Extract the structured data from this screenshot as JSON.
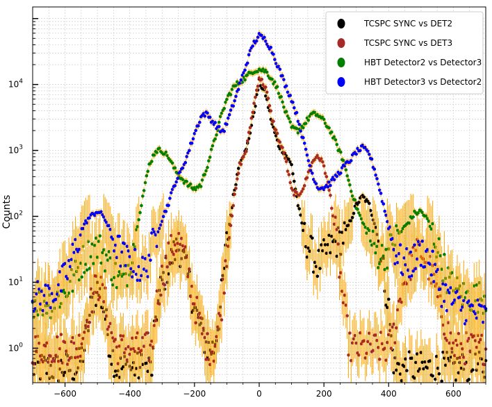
{
  "chart_data": {
    "type": "scatter",
    "ylabel": "Counts",
    "xlabel": "",
    "title": "",
    "y_scale": "log",
    "xlim": [
      -700,
      700
    ],
    "ylim": [
      0.3,
      150000
    ],
    "x_ticks": [
      -600,
      -400,
      -200,
      0,
      200,
      400,
      600
    ],
    "x_tick_labels": [
      "−600",
      "−400",
      "−200",
      "0",
      "200",
      "400",
      "600"
    ],
    "y_ticks": [
      1,
      10,
      100,
      1000,
      10000
    ],
    "y_tick_bases": [
      "10",
      "10",
      "10",
      "10",
      "10"
    ],
    "y_tick_exponents": [
      "0",
      "1",
      "2",
      "3",
      "4"
    ],
    "grid": true,
    "legend_position": "top-right",
    "errorbar_color": "#ffa500",
    "series": [
      {
        "name": "TCSPC SYNC vs DET2",
        "color": "#000000",
        "points": [
          [
            -700,
            0.5
          ],
          [
            -560,
            0.5
          ],
          [
            -540,
            1
          ],
          [
            -520,
            4
          ],
          [
            -510,
            6
          ],
          [
            -500,
            8
          ],
          [
            -490,
            6
          ],
          [
            -480,
            4
          ],
          [
            -460,
            1
          ],
          [
            -440,
            0.5
          ],
          [
            -330,
            0.5
          ],
          [
            -320,
            3
          ],
          [
            -300,
            10
          ],
          [
            -280,
            18
          ],
          [
            -260,
            30
          ],
          [
            -250,
            35
          ],
          [
            -240,
            28
          ],
          [
            -220,
            12
          ],
          [
            -200,
            4
          ],
          [
            -180,
            2
          ],
          [
            -160,
            1
          ],
          [
            -140,
            1
          ],
          [
            -120,
            4
          ],
          [
            -100,
            40
          ],
          [
            -80,
            200
          ],
          [
            -60,
            700
          ],
          [
            -40,
            1000
          ],
          [
            -20,
            3000
          ],
          [
            0,
            11000
          ],
          [
            20,
            7000
          ],
          [
            40,
            2500
          ],
          [
            60,
            1200
          ],
          [
            80,
            900
          ],
          [
            100,
            600
          ],
          [
            120,
            150
          ],
          [
            140,
            50
          ],
          [
            160,
            30
          ],
          [
            180,
            18
          ],
          [
            200,
            25
          ],
          [
            220,
            35
          ],
          [
            240,
            40
          ],
          [
            260,
            50
          ],
          [
            280,
            80
          ],
          [
            300,
            150
          ],
          [
            320,
            200
          ],
          [
            340,
            150
          ],
          [
            360,
            70
          ],
          [
            380,
            20
          ],
          [
            400,
            4
          ],
          [
            410,
            1
          ],
          [
            420,
            0.5
          ],
          [
            700,
            0.5
          ]
        ]
      },
      {
        "name": "TCSPC SYNC vs DET3",
        "color": "#a52a2a",
        "points": [
          [
            -700,
            1
          ],
          [
            -560,
            1
          ],
          [
            -540,
            2
          ],
          [
            -520,
            5
          ],
          [
            -500,
            10
          ],
          [
            -480,
            6
          ],
          [
            -460,
            2
          ],
          [
            -440,
            1
          ],
          [
            -330,
            1
          ],
          [
            -320,
            4
          ],
          [
            -300,
            12
          ],
          [
            -280,
            25
          ],
          [
            -260,
            40
          ],
          [
            -250,
            45
          ],
          [
            -240,
            35
          ],
          [
            -220,
            15
          ],
          [
            -200,
            5
          ],
          [
            -180,
            2
          ],
          [
            -160,
            1
          ],
          [
            -140,
            1
          ],
          [
            -120,
            3
          ],
          [
            -100,
            30
          ],
          [
            -80,
            150
          ],
          [
            -60,
            600
          ],
          [
            -40,
            1000
          ],
          [
            -20,
            4000
          ],
          [
            0,
            13000
          ],
          [
            20,
            9000
          ],
          [
            40,
            3000
          ],
          [
            60,
            1500
          ],
          [
            80,
            800
          ],
          [
            100,
            250
          ],
          [
            120,
            200
          ],
          [
            140,
            300
          ],
          [
            160,
            600
          ],
          [
            180,
            850
          ],
          [
            200,
            600
          ],
          [
            220,
            200
          ],
          [
            240,
            40
          ],
          [
            260,
            5
          ],
          [
            280,
            1
          ],
          [
            400,
            1
          ],
          [
            420,
            2
          ],
          [
            440,
            8
          ],
          [
            460,
            15
          ],
          [
            480,
            25
          ],
          [
            500,
            30
          ],
          [
            520,
            20
          ],
          [
            540,
            10
          ],
          [
            560,
            4
          ],
          [
            580,
            2
          ],
          [
            600,
            1
          ],
          [
            700,
            1
          ]
        ]
      },
      {
        "name": "HBT Detector2 vs Detector3",
        "color": "#008000",
        "points": [
          [
            -700,
            5
          ],
          [
            -640,
            5
          ],
          [
            -600,
            7
          ],
          [
            -570,
            12
          ],
          [
            -550,
            20
          ],
          [
            -520,
            30
          ],
          [
            -500,
            35
          ],
          [
            -480,
            28
          ],
          [
            -460,
            18
          ],
          [
            -440,
            12
          ],
          [
            -420,
            10
          ],
          [
            -400,
            20
          ],
          [
            -380,
            60
          ],
          [
            -360,
            200
          ],
          [
            -340,
            600
          ],
          [
            -320,
            1000
          ],
          [
            -300,
            1000
          ],
          [
            -280,
            800
          ],
          [
            -260,
            500
          ],
          [
            -240,
            380
          ],
          [
            -220,
            300
          ],
          [
            -200,
            260
          ],
          [
            -180,
            300
          ],
          [
            -160,
            600
          ],
          [
            -140,
            1300
          ],
          [
            -120,
            3000
          ],
          [
            -100,
            6000
          ],
          [
            -80,
            9000
          ],
          [
            -60,
            11000
          ],
          [
            -40,
            13000
          ],
          [
            -20,
            16000
          ],
          [
            0,
            17000
          ],
          [
            20,
            16000
          ],
          [
            40,
            12000
          ],
          [
            60,
            8000
          ],
          [
            80,
            4000
          ],
          [
            100,
            2200
          ],
          [
            120,
            2000
          ],
          [
            140,
            2500
          ],
          [
            160,
            3500
          ],
          [
            180,
            3500
          ],
          [
            200,
            2800
          ],
          [
            220,
            2000
          ],
          [
            240,
            1200
          ],
          [
            260,
            700
          ],
          [
            280,
            300
          ],
          [
            300,
            140
          ],
          [
            320,
            80
          ],
          [
            340,
            50
          ],
          [
            360,
            30
          ],
          [
            380,
            25
          ],
          [
            400,
            30
          ],
          [
            420,
            45
          ],
          [
            440,
            60
          ],
          [
            460,
            80
          ],
          [
            480,
            110
          ],
          [
            500,
            120
          ],
          [
            520,
            90
          ],
          [
            540,
            50
          ],
          [
            560,
            25
          ],
          [
            580,
            12
          ],
          [
            600,
            8
          ],
          [
            640,
            6
          ],
          [
            700,
            6
          ]
        ]
      },
      {
        "name": "HBT Detector3 vs Detector2",
        "color": "#0000ff",
        "points": [
          [
            -700,
            6
          ],
          [
            -660,
            6
          ],
          [
            -620,
            8
          ],
          [
            -590,
            15
          ],
          [
            -570,
            30
          ],
          [
            -550,
            60
          ],
          [
            -530,
            90
          ],
          [
            -510,
            110
          ],
          [
            -500,
            120
          ],
          [
            -480,
            100
          ],
          [
            -460,
            60
          ],
          [
            -440,
            35
          ],
          [
            -420,
            25
          ],
          [
            -400,
            20
          ],
          [
            -380,
            18
          ],
          [
            -360,
            15
          ],
          [
            -350,
            16
          ],
          [
            -340,
            25
          ],
          [
            -320,
            50
          ],
          [
            -300,
            90
          ],
          [
            -280,
            160
          ],
          [
            -260,
            320
          ],
          [
            -240,
            500
          ],
          [
            -220,
            900
          ],
          [
            -200,
            1800
          ],
          [
            -180,
            3200
          ],
          [
            -170,
            3600
          ],
          [
            -160,
            3500
          ],
          [
            -140,
            2600
          ],
          [
            -120,
            2000
          ],
          [
            -110,
            2000
          ],
          [
            -100,
            2600
          ],
          [
            -80,
            5000
          ],
          [
            -60,
            10000
          ],
          [
            -40,
            20000
          ],
          [
            -20,
            40000
          ],
          [
            0,
            55000
          ],
          [
            20,
            48000
          ],
          [
            40,
            32000
          ],
          [
            60,
            18000
          ],
          [
            80,
            10000
          ],
          [
            100,
            6000
          ],
          [
            120,
            3000
          ],
          [
            140,
            1200
          ],
          [
            160,
            500
          ],
          [
            180,
            280
          ],
          [
            200,
            270
          ],
          [
            220,
            320
          ],
          [
            240,
            420
          ],
          [
            260,
            550
          ],
          [
            280,
            700
          ],
          [
            300,
            950
          ],
          [
            320,
            1100
          ],
          [
            340,
            900
          ],
          [
            360,
            450
          ],
          [
            380,
            180
          ],
          [
            400,
            70
          ],
          [
            420,
            30
          ],
          [
            440,
            20
          ],
          [
            460,
            18
          ],
          [
            480,
            22
          ],
          [
            500,
            30
          ],
          [
            520,
            25
          ],
          [
            540,
            15
          ],
          [
            560,
            8
          ],
          [
            600,
            5
          ],
          [
            640,
            4
          ],
          [
            700,
            3
          ]
        ]
      }
    ]
  }
}
